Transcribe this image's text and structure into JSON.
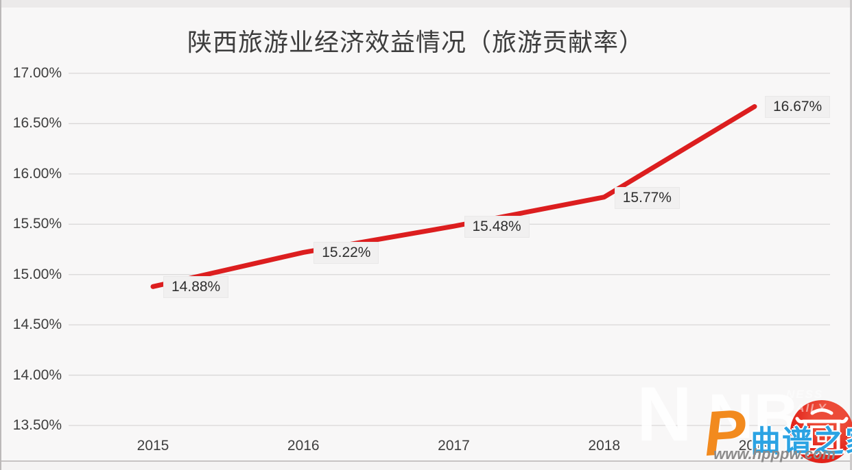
{
  "title": "陕西旅游业经济效益情况（旅游贡献率）",
  "chart_data": {
    "type": "line",
    "title": "陕西旅游业经济效益情况（旅游贡献率）",
    "categories": [
      "2015",
      "2016",
      "2017",
      "2018",
      "2019"
    ],
    "series": [
      {
        "name": "旅游贡献率",
        "values": [
          14.88,
          15.22,
          15.48,
          15.77,
          16.67
        ],
        "data_labels": [
          "14.88%",
          "15.22%",
          "15.48%",
          "15.77%",
          "16.67%"
        ],
        "color": "#dc1e1f"
      }
    ],
    "xlabel": "",
    "ylabel": "",
    "ylim": [
      13.5,
      17.0
    ],
    "ytick_step": 0.5,
    "ytick_labels_top_to_bottom": [
      "17.00%",
      "16.50%",
      "16.00%",
      "15.50%",
      "15.00%",
      "14.50%",
      "14.00%",
      "13.50%"
    ],
    "grid": true,
    "gridline_color": "#d9d7d7",
    "legend_position": "none",
    "data_label_bg": "#f1f0f0"
  },
  "watermark": {
    "n1": "N",
    "n2": "NB",
    "daily": "NESS DAILY",
    "p_letter": "P",
    "site_name": "曲谱之家",
    "site_url": "www.hpppw.com",
    "colors": {
      "orange": "#f28a1e",
      "blue": "#2ba3e3",
      "red": "#e2231a",
      "gray": "#8c8b8b"
    }
  }
}
